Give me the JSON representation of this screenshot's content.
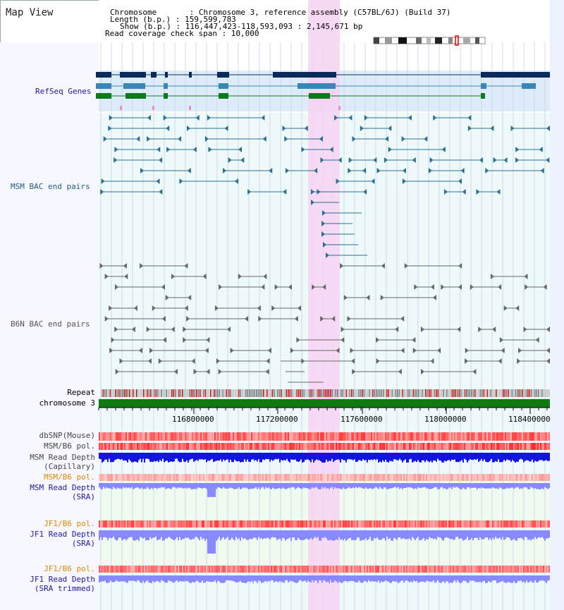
{
  "header": {
    "title": "Map View",
    "chromosome": "Chromosome       : Chromosome 3, reference assembly (C57BL/6J) (Build 37)",
    "length": "Length (b.p.) : 159,599,783",
    "show": "Show (b.p.) : 116,447,423-118,593,093 : 2,145,671 bp",
    "coverage": "Read coverage check span : 10,000"
  },
  "tracks": {
    "refseq": "RefSeq Genes",
    "msm_bac": "MSM BAC end pairs",
    "b6n_bac": "B6N BAC end pairs",
    "repeat": "Repeat",
    "chromosome": "chromosome 3",
    "dbsnp": "dbSNP(Mouse)",
    "msm_b6_pol": "MSM/B6 pol.",
    "msm_depth_cap_1": "MSM Read Depth",
    "msm_depth_cap_2": "(Capillary)",
    "msm_b6_pol_2": "MSM/B6 pol.",
    "msm_depth_sra_1": "MSM Read Depth",
    "msm_depth_sra_2": "(SRA)",
    "jf1_b6_pol": "JF1/B6 pol.",
    "jf1_depth_sra_1": "JF1 Read Depth",
    "jf1_depth_sra_2": "(SRA)",
    "jf1_b6_pol_2": "JF1/B6 pol.",
    "jf1_depth_trim_1": "JF1 Read Depth",
    "jf1_depth_trim_2": "(SRA trimmed)"
  },
  "axis": {
    "ticks": [
      "116800000",
      "117200000",
      "117600000",
      "118000000",
      "118400000"
    ]
  },
  "colors": {
    "highlight": "#f7d2f2",
    "gene_dark": "#0b2a5c",
    "gene_mid": "#3a86b8",
    "gene_green": "#0b7a1e",
    "msm_pair": "#2b6f8f",
    "b6n_pair": "#666666",
    "chromosome_bar": "#0f7a12",
    "depth_dark": "#1414e0",
    "depth_light": "#8888ff"
  }
}
